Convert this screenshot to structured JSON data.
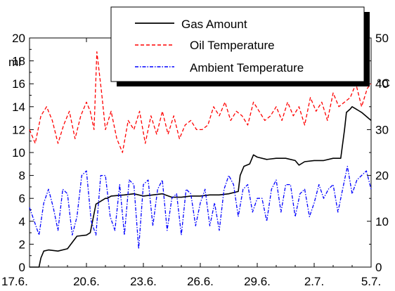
{
  "chart_data": {
    "type": "line",
    "title": "",
    "xlabel": "",
    "x_ticks": [
      "17.6.",
      "20.6.",
      "23.6.",
      "26.6.",
      "29.6.",
      "2.7.",
      "5.7."
    ],
    "xlim_days": [
      0,
      18
    ],
    "y_left": {
      "label": "ml",
      "lim": [
        0,
        20
      ],
      "ticks": [
        0,
        2,
        4,
        6,
        8,
        10,
        12,
        14,
        16,
        18,
        20
      ]
    },
    "y_right": {
      "label": "°C",
      "lim": [
        0,
        50
      ],
      "ticks": [
        0,
        10,
        20,
        30,
        40,
        50
      ]
    },
    "grid": false,
    "legend_position": "top-right",
    "series": [
      {
        "name": "Gas Amount",
        "axis": "left",
        "color": "#000000",
        "style": "solid",
        "x": [
          0,
          0.5,
          0.6,
          0.75,
          1.0,
          1.5,
          2.0,
          2.5,
          3.0,
          3.2,
          3.5,
          3.9,
          4.0,
          4.1,
          4.3,
          5.0,
          5.5,
          6.0,
          6.5,
          7.0,
          7.5,
          8.0,
          8.5,
          9.0,
          9.5,
          10.0,
          10.5,
          11.0,
          11.1,
          11.3,
          11.6,
          11.8,
          12.0,
          12.5,
          13.0,
          13.5,
          14.0,
          14.2,
          14.5,
          15.0,
          15.5,
          16.0,
          16.4,
          16.6,
          16.7,
          16.9,
          17.0,
          17.5,
          18.0
        ],
        "values": [
          0,
          0,
          0.8,
          1.4,
          1.5,
          1.4,
          1.6,
          2.7,
          2.8,
          3.0,
          5.5,
          5.9,
          6.0,
          6.0,
          6.2,
          6.3,
          6.4,
          6.2,
          6.3,
          6.4,
          6.1,
          6.1,
          6.2,
          6.2,
          6.3,
          6.3,
          6.4,
          6.6,
          8.0,
          8.8,
          9.0,
          9.8,
          9.6,
          9.4,
          9.5,
          9.5,
          9.3,
          8.9,
          9.2,
          9.3,
          9.3,
          9.5,
          9.5,
          12.0,
          13.5,
          13.8,
          14.0,
          13.5,
          12.8
        ]
      },
      {
        "name": "Oil Temperature",
        "axis": "right",
        "color": "#ff0000",
        "style": "dashed",
        "x": [
          0,
          0.3,
          0.6,
          0.9,
          1.2,
          1.5,
          1.8,
          2.1,
          2.4,
          2.7,
          3.0,
          3.2,
          3.4,
          3.55,
          3.8,
          4.0,
          4.3,
          4.6,
          4.9,
          5.2,
          5.5,
          5.8,
          6.1,
          6.4,
          6.7,
          7.0,
          7.3,
          7.6,
          7.9,
          8.2,
          8.5,
          8.8,
          9.1,
          9.4,
          9.7,
          10.0,
          10.3,
          10.6,
          10.9,
          11.2,
          11.5,
          11.8,
          12.1,
          12.4,
          12.7,
          13.0,
          13.3,
          13.6,
          13.9,
          14.2,
          14.5,
          14.8,
          15.1,
          15.4,
          15.7,
          16.0,
          16.3,
          16.6,
          16.9,
          17.2,
          17.5,
          17.8,
          18.0
        ],
        "values": [
          30,
          27,
          33,
          35,
          32,
          27,
          31,
          34,
          28,
          33,
          36,
          34,
          30,
          47,
          38,
          30,
          34,
          28,
          25,
          32,
          30,
          34,
          27,
          33,
          29,
          34,
          29,
          33,
          28,
          31,
          32,
          30,
          30,
          31,
          35,
          33,
          36,
          32,
          34,
          33,
          31,
          36,
          34,
          32,
          33,
          35,
          32,
          36,
          33,
          35,
          31,
          37,
          34,
          36,
          32,
          38,
          35,
          36,
          37,
          40,
          35,
          39,
          40
        ]
      },
      {
        "name": "Ambient Temperature",
        "axis": "right",
        "color": "#0000ff",
        "style": "dashdot",
        "x": [
          0,
          0.25,
          0.5,
          0.75,
          1.0,
          1.25,
          1.5,
          1.75,
          2.0,
          2.25,
          2.5,
          2.75,
          3.0,
          3.25,
          3.5,
          3.75,
          4.0,
          4.25,
          4.5,
          4.75,
          5.0,
          5.25,
          5.5,
          5.75,
          6.0,
          6.25,
          6.5,
          6.75,
          7.0,
          7.25,
          7.5,
          7.75,
          8.0,
          8.25,
          8.5,
          8.75,
          9.0,
          9.25,
          9.5,
          9.75,
          10.0,
          10.25,
          10.5,
          10.75,
          11.0,
          11.25,
          11.5,
          11.75,
          12.0,
          12.25,
          12.5,
          12.75,
          13.0,
          13.25,
          13.5,
          13.75,
          14.0,
          14.25,
          14.5,
          14.75,
          15.0,
          15.25,
          15.5,
          15.75,
          16.0,
          16.25,
          16.5,
          16.75,
          17.0,
          17.25,
          17.5,
          17.75,
          18.0
        ],
        "values": [
          13,
          10,
          7,
          14,
          17,
          13,
          8,
          17,
          16,
          7,
          11,
          20,
          21,
          10,
          7,
          20,
          20,
          11,
          8,
          18,
          7,
          19,
          18,
          4,
          18,
          19,
          9,
          17,
          19,
          8,
          15,
          16,
          7,
          17,
          16,
          9,
          14,
          17,
          9,
          14,
          8,
          17,
          20,
          18,
          11,
          17,
          18,
          12,
          15,
          15,
          10,
          17,
          19,
          12,
          18,
          18,
          11,
          16,
          17,
          11,
          14,
          18,
          15,
          17,
          18,
          12,
          17,
          22,
          16,
          19,
          20,
          21,
          17
        ]
      }
    ]
  }
}
